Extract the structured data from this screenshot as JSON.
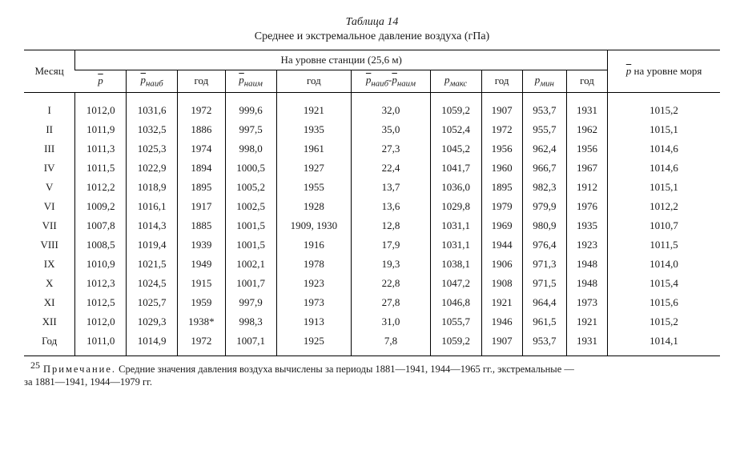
{
  "title": {
    "number": "Таблица 14",
    "caption": "Среднее и экстремальное давление воздуха (гПа)"
  },
  "header": {
    "month": "Месяц",
    "group": "На уровне станции (25,6 м)",
    "sea": "на уровне моря",
    "cols": {
      "p": "p",
      "pmaxb": "наиб",
      "y1": "год",
      "pminb": "наим",
      "y2": "год",
      "diff_pref": "p",
      "diff_a": "наиб",
      "diff_dash": "-",
      "diff_b": "наим",
      "pmax": "макс",
      "y3": "год",
      "pmin": "мин",
      "y4": "год"
    }
  },
  "rows": [
    {
      "m": "I",
      "p": "1012,0",
      "pmaxb": "1031,6",
      "y1": "1972",
      "pminb": "999,6",
      "y2": "1921",
      "diff": "32,0",
      "pmax": "1059,2",
      "y3": "1907",
      "pmin": "953,7",
      "y4": "1931",
      "sea": "1015,2"
    },
    {
      "m": "II",
      "p": "1011,9",
      "pmaxb": "1032,5",
      "y1": "1886",
      "pminb": "997,5",
      "y2": "1935",
      "diff": "35,0",
      "pmax": "1052,4",
      "y3": "1972",
      "pmin": "955,7",
      "y4": "1962",
      "sea": "1015,1"
    },
    {
      "m": "III",
      "p": "1011,3",
      "pmaxb": "1025,3",
      "y1": "1974",
      "pminb": "998,0",
      "y2": "1961",
      "diff": "27,3",
      "pmax": "1045,2",
      "y3": "1956",
      "pmin": "962,4",
      "y4": "1956",
      "sea": "1014,6"
    },
    {
      "m": "IV",
      "p": "1011,5",
      "pmaxb": "1022,9",
      "y1": "1894",
      "pminb": "1000,5",
      "y2": "1927",
      "diff": "22,4",
      "pmax": "1041,7",
      "y3": "1960",
      "pmin": "966,7",
      "y4": "1967",
      "sea": "1014,6"
    },
    {
      "m": "V",
      "p": "1012,2",
      "pmaxb": "1018,9",
      "y1": "1895",
      "pminb": "1005,2",
      "y2": "1955",
      "diff": "13,7",
      "pmax": "1036,0",
      "y3": "1895",
      "pmin": "982,3",
      "y4": "1912",
      "sea": "1015,1"
    },
    {
      "m": "VI",
      "p": "1009,2",
      "pmaxb": "1016,1",
      "y1": "1917",
      "pminb": "1002,5",
      "y2": "1928",
      "diff": "13,6",
      "pmax": "1029,8",
      "y3": "1979",
      "pmin": "979,9",
      "y4": "1976",
      "sea": "1012,2"
    },
    {
      "m": "VII",
      "p": "1007,8",
      "pmaxb": "1014,3",
      "y1": "1885",
      "pminb": "1001,5",
      "y2": "1909, 1930",
      "diff": "12,8",
      "pmax": "1031,1",
      "y3": "1969",
      "pmin": "980,9",
      "y4": "1935",
      "sea": "1010,7"
    },
    {
      "m": "VIII",
      "p": "1008,5",
      "pmaxb": "1019,4",
      "y1": "1939",
      "pminb": "1001,5",
      "y2": "1916",
      "diff": "17,9",
      "pmax": "1031,1",
      "y3": "1944",
      "pmin": "976,4",
      "y4": "1923",
      "sea": "1011,5"
    },
    {
      "m": "IX",
      "p": "1010,9",
      "pmaxb": "1021,5",
      "y1": "1949",
      "pminb": "1002,1",
      "y2": "1978",
      "diff": "19,3",
      "pmax": "1038,1",
      "y3": "1906",
      "pmin": "971,3",
      "y4": "1948",
      "sea": "1014,0"
    },
    {
      "m": "X",
      "p": "1012,3",
      "pmaxb": "1024,5",
      "y1": "1915",
      "pminb": "1001,7",
      "y2": "1923",
      "diff": "22,8",
      "pmax": "1047,2",
      "y3": "1908",
      "pmin": "971,5",
      "y4": "1948",
      "sea": "1015,4"
    },
    {
      "m": "XI",
      "p": "1012,5",
      "pmaxb": "1025,7",
      "y1": "1959",
      "pminb": "997,9",
      "y2": "1973",
      "diff": "27,8",
      "pmax": "1046,8",
      "y3": "1921",
      "pmin": "964,4",
      "y4": "1973",
      "sea": "1015,6"
    },
    {
      "m": "XII",
      "p": "1012,0",
      "pmaxb": "1029,3",
      "y1": "1938*",
      "pminb": "998,3",
      "y2": "1913",
      "diff": "31,0",
      "pmax": "1055,7",
      "y3": "1946",
      "pmin": "961,5",
      "y4": "1921",
      "sea": "1015,2"
    },
    {
      "m": "Год",
      "p": "1011,0",
      "pmaxb": "1014,9",
      "y1": "1972",
      "pminb": "1007,1",
      "y2": "1925",
      "diff": "7,8",
      "pmax": "1059,2",
      "y3": "1907",
      "pmin": "953,7",
      "y4": "1931",
      "sea": "1014,1"
    }
  ],
  "footnote": {
    "label": "Примечание.",
    "text_a": "Средние значения давления воздуха вычислены за периоды 1881—1941, 1944—1965 гг., экстремальные —",
    "text_b": "за 1881—1941, 1944—1979 гг."
  },
  "page_number": "25",
  "style": {
    "text_color": "#1a1a1a",
    "bg": "#ffffff",
    "font": "Times New Roman",
    "base_fontsize_pt": 13,
    "title_fontsize_pt": 14,
    "footnote_fontsize_pt": 12.5,
    "rule_color": "#000000"
  }
}
